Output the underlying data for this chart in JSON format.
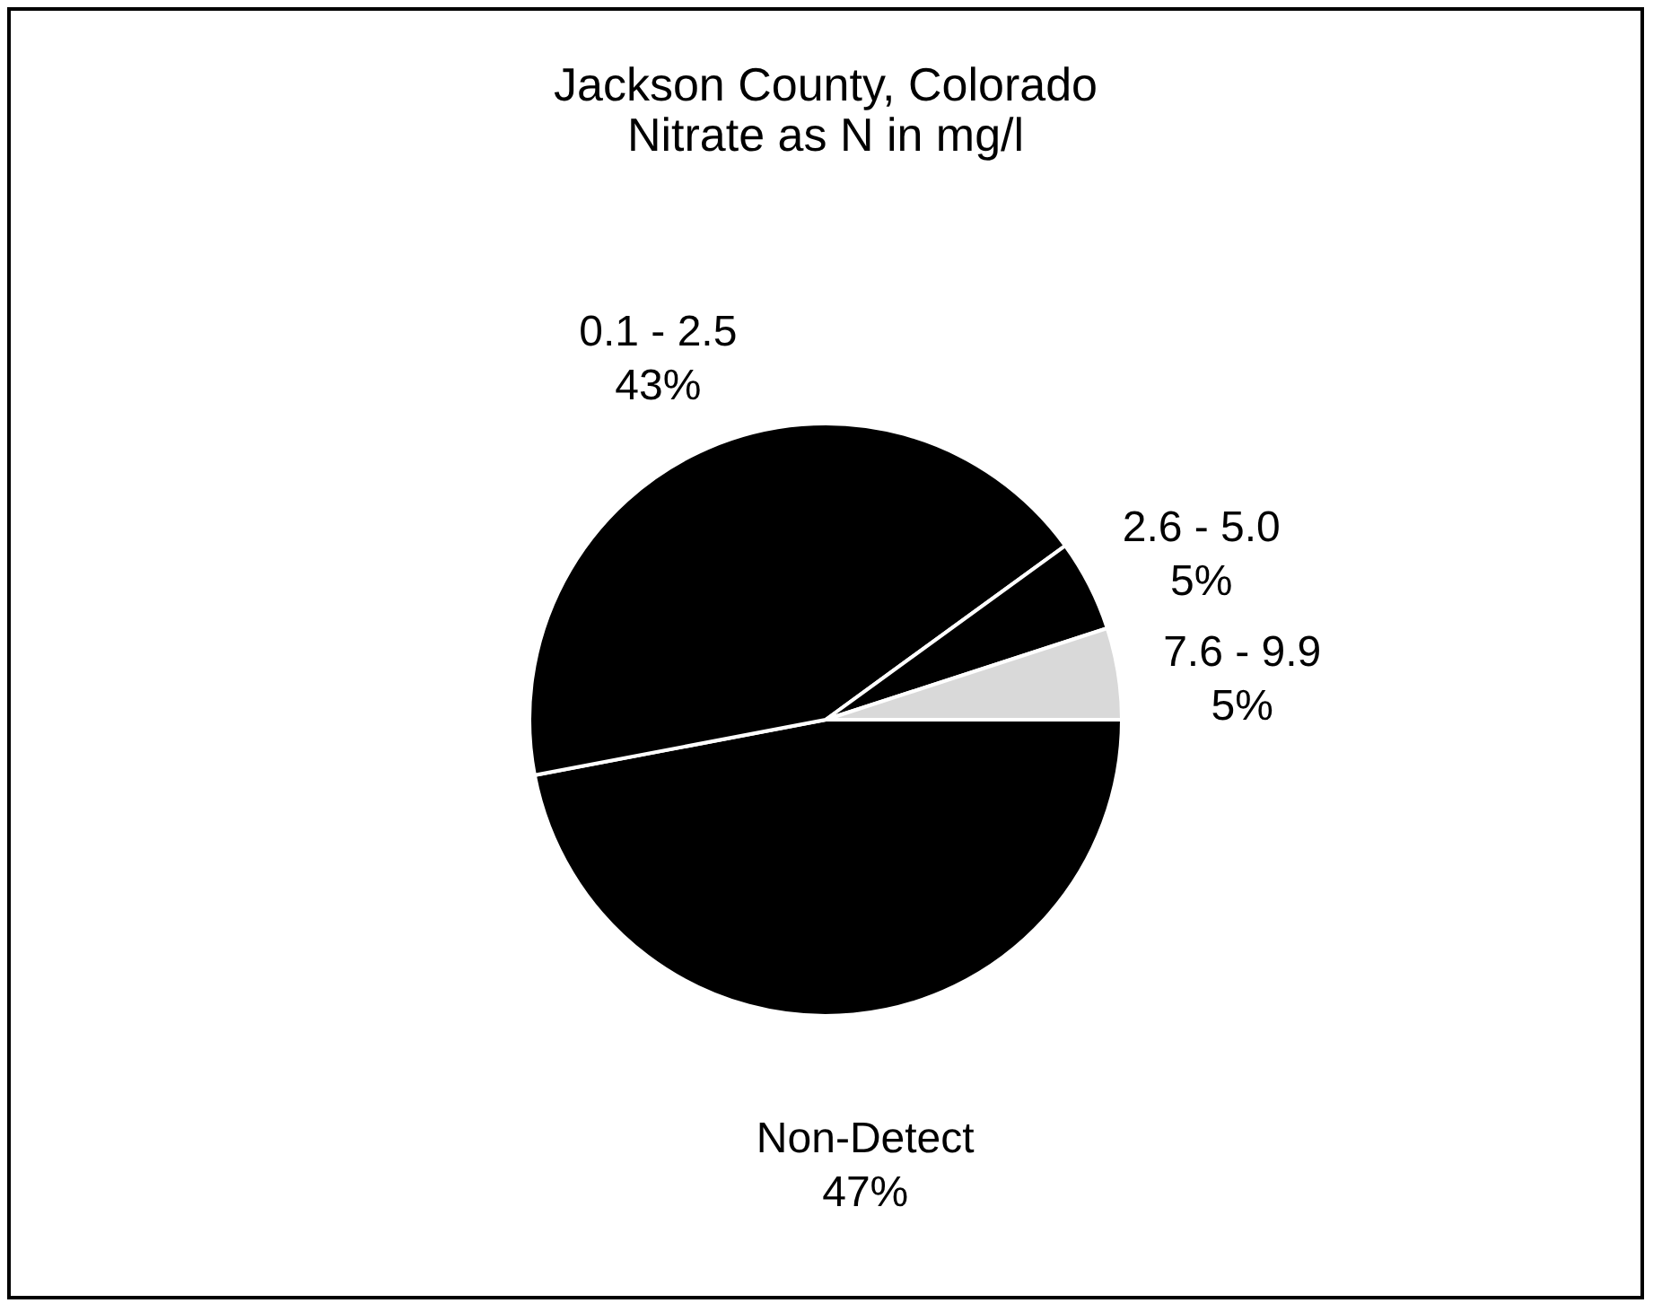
{
  "chart_data": {
    "type": "pie",
    "title": [
      "Jackson County, Colorado",
      "Nitrate as N in mg/l"
    ],
    "categories": [
      "Non-Detect",
      "0.1 - 2.5",
      "2.6 - 5.0",
      "7.6 - 9.9"
    ],
    "values": [
      47,
      43,
      5,
      5
    ],
    "value_labels": [
      "47%",
      "43%",
      "5%",
      "5%"
    ],
    "colors": [
      "#000000",
      "#000000",
      "#000000",
      "#d9d9d9"
    ]
  }
}
